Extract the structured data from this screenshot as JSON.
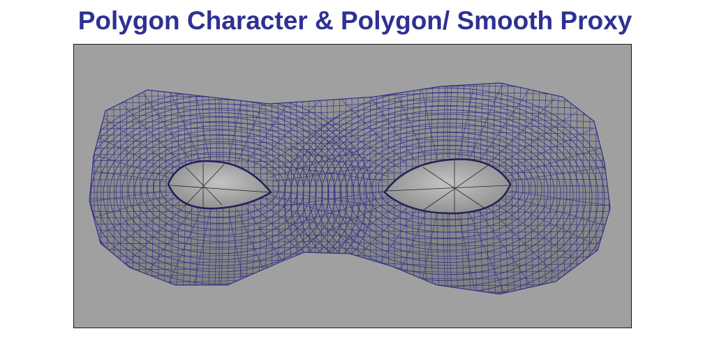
{
  "slide": {
    "title": "Polygon Character & Polygon/ Smooth Proxy"
  },
  "viewport": {
    "background_color": "#a0a0a0",
    "wireframe_color": "#2e2e8a",
    "mesh_fill_color": "#8a8a8a",
    "eyeball_color": "#b4b4b4",
    "subject": "eye-mask-mesh-icon"
  }
}
